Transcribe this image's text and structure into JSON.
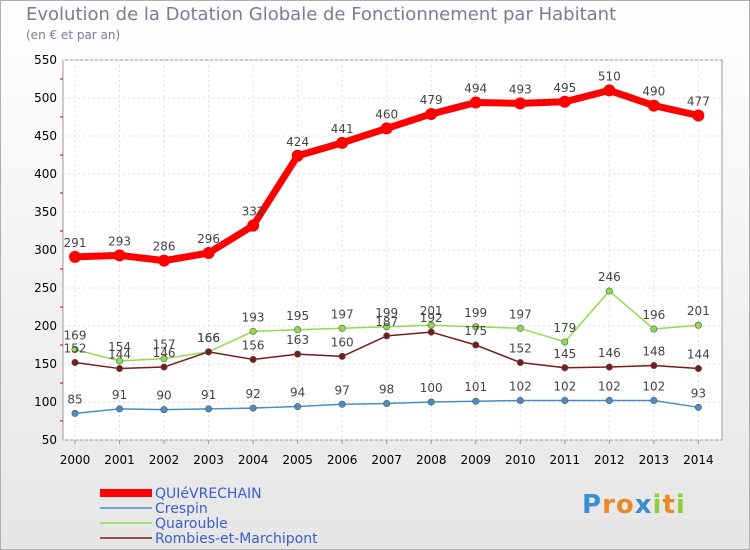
{
  "chart_data": {
    "type": "line",
    "title": "Evolution de la Dotation Globale de Fonctionnement par Habitant",
    "subtitle": "(en € et par an)",
    "xlabel": "",
    "ylabel": "",
    "ylim": [
      50,
      550
    ],
    "yticks": [
      50,
      100,
      150,
      200,
      250,
      300,
      350,
      400,
      450,
      500,
      550
    ],
    "grid": true,
    "legend_position": "bottom-left",
    "x": [
      "2000",
      "2001",
      "2002",
      "2003",
      "2004",
      "2005",
      "2006",
      "2007",
      "2008",
      "2009",
      "2010",
      "2011",
      "2012",
      "2013",
      "2014"
    ],
    "series": [
      {
        "name": "QUIéVRECHAIN",
        "color": "#ff0000",
        "values": [
          291,
          293,
          286,
          296,
          332,
          424,
          441,
          460,
          479,
          494,
          493,
          495,
          510,
          490,
          477
        ]
      },
      {
        "name": "Crespin",
        "color": "#4a8ec6",
        "values": [
          85,
          91,
          90,
          91,
          92,
          94,
          97,
          98,
          100,
          101,
          102,
          102,
          102,
          102,
          93
        ]
      },
      {
        "name": "Quarouble",
        "color": "#8fdc4a",
        "values": [
          169,
          154,
          157,
          166,
          193,
          195,
          197,
          199,
          201,
          199,
          197,
          179,
          246,
          196,
          201
        ]
      },
      {
        "name": "Rombies-et-Marchipont",
        "color": "#7a1a1a",
        "values": [
          152,
          144,
          146,
          166,
          156,
          163,
          160,
          187,
          192,
          175,
          152,
          145,
          146,
          148,
          144
        ]
      }
    ]
  },
  "logo": {
    "letters": [
      "P",
      "r",
      "o",
      "x",
      "i",
      "t",
      "i"
    ],
    "colors": [
      "#3a8fd0",
      "#e8892a",
      "#e8892a",
      "#3a8fd0",
      "#8fcf3a",
      "#e8892a",
      "#8fcf3a"
    ]
  }
}
